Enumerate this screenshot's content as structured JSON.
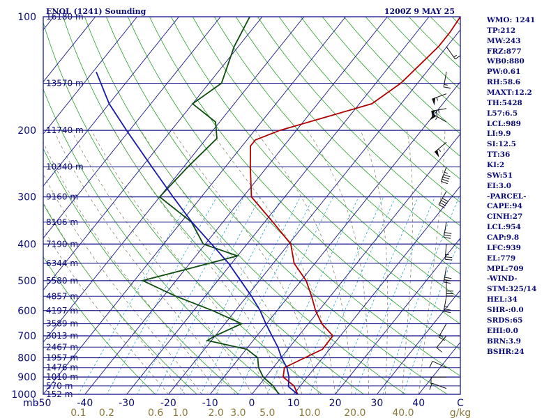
{
  "header": {
    "station": "ENOL (1241) Sounding",
    "valid_time": "1200Z  9 MAY 25"
  },
  "stats": [
    "WMO: 1241",
    "TP:212",
    "MW:243",
    "FRZ:877",
    "WB0:880",
    "PW:0.61",
    "RH:58.6",
    "MAXT:12.2",
    "TH:5428",
    "L57:6.5",
    "LCL:989",
    "LI:9.9",
    "SI:12.5",
    "TT:36",
    "KI:2",
    "SW:51",
    "EI:3.0",
    "-PARCEL-",
    "CAPE:94",
    "CINH:27",
    "LCL:954",
    "CAP:9.8",
    "LFC:939",
    "EL:779",
    "MPL:709",
    "-WIND-",
    "STM:325/14",
    "HEL:34",
    "SHR-:0.0",
    "SRDS:65",
    "EHI:0.0",
    "BRN:3.9",
    "BSHR:24"
  ],
  "chart_data": {
    "type": "skew-t",
    "xlabel": "",
    "ylabel": "mb",
    "pressure_unit": "mb",
    "temperature_unit": "C",
    "mixing_ratio_unit": "g/kg",
    "pressure_range": [
      1000,
      100
    ],
    "temperature_range": [
      -50,
      50
    ],
    "pressure_ticks": [
      {
        "p": 100,
        "label": "100"
      },
      {
        "p": 200,
        "label": "200"
      },
      {
        "p": 300,
        "label": "300"
      },
      {
        "p": 400,
        "label": "400"
      },
      {
        "p": 500,
        "label": "500"
      },
      {
        "p": 600,
        "label": "600"
      },
      {
        "p": 700,
        "label": "700"
      },
      {
        "p": 800,
        "label": "800"
      },
      {
        "p": 900,
        "label": "900"
      },
      {
        "p": 1000,
        "label": "1000"
      }
    ],
    "temperature_ticks": [
      {
        "t": -50,
        "label": "-50"
      },
      {
        "t": -40,
        "label": "-40"
      },
      {
        "t": -30,
        "label": "-30"
      },
      {
        "t": -20,
        "label": "-20"
      },
      {
        "t": -10,
        "label": "-10"
      },
      {
        "t": 0,
        "label": "0"
      },
      {
        "t": 10,
        "label": "10"
      },
      {
        "t": 20,
        "label": "20"
      },
      {
        "t": 30,
        "label": "30"
      },
      {
        "t": 40,
        "label": "40"
      },
      {
        "t": 50,
        "label": "C"
      }
    ],
    "mixing_ratio_ticks": [
      {
        "w": 0.1,
        "label": "0.1"
      },
      {
        "w": 0.2,
        "label": "0.2"
      },
      {
        "w": 0.6,
        "label": "0.6"
      },
      {
        "w": 1.0,
        "label": "1.0"
      },
      {
        "w": 2.0,
        "label": "2.0"
      },
      {
        "w": 3.0,
        "label": "3.0"
      },
      {
        "w": 5.0,
        "label": "5.0"
      },
      {
        "w": 10.0,
        "label": "10.0"
      },
      {
        "w": 20.0,
        "label": "20.0"
      },
      {
        "w": 40.0,
        "label": "40.0"
      },
      {
        "w": null,
        "label": "g/kg"
      }
    ],
    "height_labels": [
      {
        "p": 1000,
        "label": "152 m"
      },
      {
        "p": 950,
        "label": "570 m"
      },
      {
        "p": 900,
        "label": "1010 m"
      },
      {
        "p": 850,
        "label": "1476 m"
      },
      {
        "p": 800,
        "label": "1957 m"
      },
      {
        "p": 750,
        "label": "2467 m"
      },
      {
        "p": 700,
        "label": "3013 m"
      },
      {
        "p": 650,
        "label": "3589 m"
      },
      {
        "p": 600,
        "label": "4197 m"
      },
      {
        "p": 550,
        "label": "4857 m"
      },
      {
        "p": 500,
        "label": "5580 m"
      },
      {
        "p": 450,
        "label": "6344 m"
      },
      {
        "p": 400,
        "label": "7190 m"
      },
      {
        "p": 350,
        "label": "8106 m"
      },
      {
        "p": 300,
        "label": "9160 m"
      },
      {
        "p": 250,
        "label": "10340 m"
      },
      {
        "p": 200,
        "label": "11740 m"
      },
      {
        "p": 150,
        "label": "13570 m"
      },
      {
        "p": 100,
        "label": "16180 m"
      }
    ],
    "series": [
      {
        "key": "temperature",
        "color": "#b00000",
        "points": [
          {
            "p": 1000,
            "t": 11.0
          },
          {
            "p": 950,
            "t": 8.5
          },
          {
            "p": 900,
            "t": 4.2
          },
          {
            "p": 850,
            "t": 2.7
          },
          {
            "p": 800,
            "t": 5.7
          },
          {
            "p": 760,
            "t": 8.3
          },
          {
            "p": 700,
            "t": 8.2
          },
          {
            "p": 650,
            "t": 3.2
          },
          {
            "p": 600,
            "t": -0.8
          },
          {
            "p": 550,
            "t": -4.5
          },
          {
            "p": 500,
            "t": -8.8
          },
          {
            "p": 450,
            "t": -15.0
          },
          {
            "p": 400,
            "t": -19.5
          },
          {
            "p": 350,
            "t": -28.0
          },
          {
            "p": 300,
            "t": -38.0
          },
          {
            "p": 250,
            "t": -44.0
          },
          {
            "p": 220,
            "t": -48.0
          },
          {
            "p": 212,
            "t": -48.0
          },
          {
            "p": 200,
            "t": -44.0
          },
          {
            "p": 170,
            "t": -27.0
          },
          {
            "p": 150,
            "t": -24.0
          },
          {
            "p": 120,
            "t": -22.0
          },
          {
            "p": 110,
            "t": -22.0
          },
          {
            "p": 100,
            "t": -22.5
          }
        ]
      },
      {
        "key": "dewpoint",
        "color": "#0d4d0d",
        "points": [
          {
            "p": 1000,
            "t": 6.5
          },
          {
            "p": 950,
            "t": 3.5
          },
          {
            "p": 900,
            "t": -0.6
          },
          {
            "p": 850,
            "t": -3.5
          },
          {
            "p": 800,
            "t": -5.6
          },
          {
            "p": 760,
            "t": -9.8
          },
          {
            "p": 720,
            "t": -21.0
          },
          {
            "p": 700,
            "t": -20.0
          },
          {
            "p": 650,
            "t": -16.0
          },
          {
            "p": 600,
            "t": -25.5
          },
          {
            "p": 550,
            "t": -37.0
          },
          {
            "p": 500,
            "t": -48.0
          },
          {
            "p": 460,
            "t": -38.0
          },
          {
            "p": 430,
            "t": -30.0
          },
          {
            "p": 400,
            "t": -40.5
          },
          {
            "p": 350,
            "t": -47.5
          },
          {
            "p": 300,
            "t": -60.0
          },
          {
            "p": 250,
            "t": -59.0
          },
          {
            "p": 210,
            "t": -57.5
          },
          {
            "p": 190,
            "t": -61.0
          },
          {
            "p": 170,
            "t": -70.0
          },
          {
            "p": 150,
            "t": -67.0
          },
          {
            "p": 120,
            "t": -71.0
          },
          {
            "p": 100,
            "t": -73.0
          }
        ]
      },
      {
        "key": "parcel",
        "color": "#1a1aa8",
        "points": [
          {
            "p": 1000,
            "t": 11.0
          },
          {
            "p": 954,
            "t": 7.3
          },
          {
            "p": 900,
            "t": 5.6
          },
          {
            "p": 850,
            "t": 3.3
          },
          {
            "p": 800,
            "t": 0.1
          },
          {
            "p": 750,
            "t": -2.8
          },
          {
            "p": 700,
            "t": -6.4
          },
          {
            "p": 650,
            "t": -10.2
          },
          {
            "p": 600,
            "t": -14.1
          },
          {
            "p": 550,
            "t": -18.9
          },
          {
            "p": 500,
            "t": -24.5
          },
          {
            "p": 450,
            "t": -30.7
          },
          {
            "p": 400,
            "t": -38.5
          },
          {
            "p": 350,
            "t": -47.4
          },
          {
            "p": 300,
            "t": -56.8
          },
          {
            "p": 250,
            "t": -67.6
          },
          {
            "p": 200,
            "t": -80.7
          },
          {
            "p": 170,
            "t": -90.0
          },
          {
            "p": 140,
            "t": -99.2
          }
        ]
      }
    ],
    "wind_barbs": [
      {
        "p": 965,
        "dir": 290,
        "kt": 10
      },
      {
        "p": 900,
        "dir": 270,
        "kt": 10
      },
      {
        "p": 850,
        "dir": 295,
        "kt": 10
      },
      {
        "p": 700,
        "dir": 220,
        "kt": 12
      },
      {
        "p": 650,
        "dir": 210,
        "kt": 18
      },
      {
        "p": 550,
        "dir": 190,
        "kt": 25
      },
      {
        "p": 500,
        "dir": 180,
        "kt": 30
      },
      {
        "p": 460,
        "dir": 190,
        "kt": 32
      },
      {
        "p": 400,
        "dir": 185,
        "kt": 28
      },
      {
        "p": 350,
        "dir": 190,
        "kt": 32
      },
      {
        "p": 290,
        "dir": 210,
        "kt": 40
      },
      {
        "p": 250,
        "dir": 200,
        "kt": 45
      },
      {
        "p": 215,
        "dir": 230,
        "kt": 55
      },
      {
        "p": 190,
        "dir": 300,
        "kt": 55
      },
      {
        "p": 175,
        "dir": 260,
        "kt": 65
      },
      {
        "p": 160,
        "dir": 250,
        "kt": 55
      },
      {
        "p": 140,
        "dir": 190,
        "kt": 15
      },
      {
        "p": 120,
        "dir": 145,
        "kt": 15
      }
    ],
    "grid": true,
    "legend": "none"
  }
}
